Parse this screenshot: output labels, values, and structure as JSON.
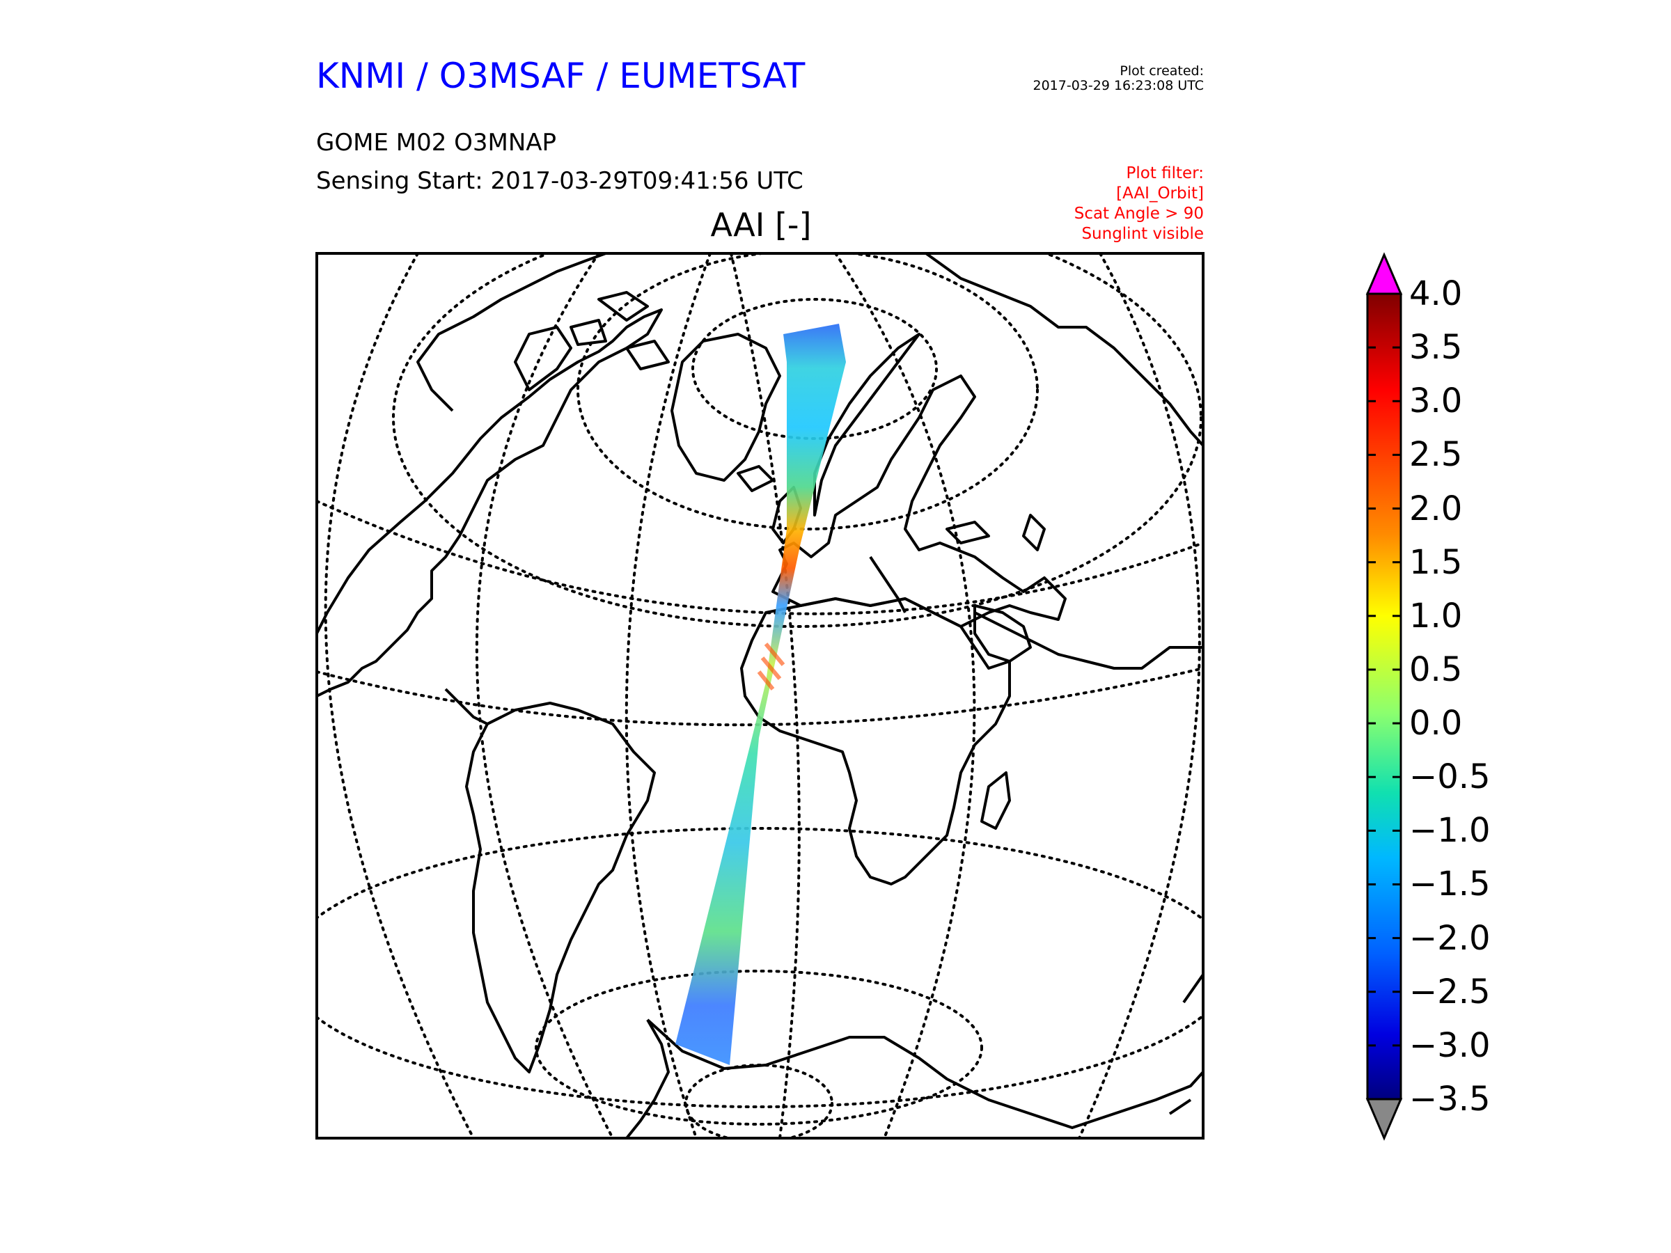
{
  "header": {
    "organization": "KNMI / O3MSAF / EUMETSAT",
    "plot_created_label": "Plot created:",
    "plot_created_value": "2017-03-29 16:23:08 UTC",
    "product": "GOME M02 O3MNAP",
    "sensing_start": "Sensing Start: 2017-03-29T09:41:56 UTC",
    "filter": {
      "label": "Plot filter:",
      "lines": [
        "[AAI_Orbit]",
        "Scat Angle > 90",
        "Sunglint visible"
      ]
    }
  },
  "map": {
    "title": "AAI [-]",
    "projection": "orthographic",
    "graticule": "dotted",
    "swath_colors": {
      "low": "#2a6cf6",
      "mid_low": "#00d2ff",
      "neutral": "#5fe07a",
      "high": "#ffd400",
      "very_high": "#ff3a00"
    }
  },
  "colorbar": {
    "ticks": [
      "4.0",
      "3.5",
      "3.0",
      "2.5",
      "2.0",
      "1.5",
      "1.0",
      "0.5",
      "0.0",
      "−0.5",
      "−1.0",
      "−1.5",
      "−2.0",
      "−2.5",
      "−3.0",
      "−3.5"
    ],
    "over_color": "#ff00ff",
    "under_color": "#888888"
  }
}
